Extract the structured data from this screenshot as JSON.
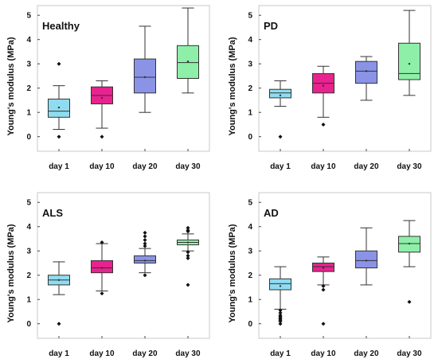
{
  "chart_data": [
    {
      "type": "box",
      "title": "Healthy",
      "ylabel": "Young's modulus (MPa)",
      "ylim": [
        -0.6,
        5.4
      ],
      "yticks": [
        0,
        1,
        2,
        3,
        4,
        5
      ],
      "categories": [
        "day 1",
        "day 10",
        "day 20",
        "day 30"
      ],
      "colors": [
        "#8fdcf0",
        "#e8238f",
        "#8a93e6",
        "#8ef0a8"
      ],
      "boxes": [
        {
          "min": 0.3,
          "q1": 0.8,
          "median": 1.05,
          "q3": 1.55,
          "max": 2.1,
          "mean": 1.2,
          "outliers": [
            3.0,
            0.0
          ]
        },
        {
          "min": 0.35,
          "q1": 1.35,
          "median": 1.7,
          "q3": 2.05,
          "max": 2.3,
          "mean": 1.6,
          "outliers": [
            0.0
          ]
        },
        {
          "min": 1.0,
          "q1": 1.8,
          "median": 2.45,
          "q3": 3.2,
          "max": 4.55,
          "mean": 2.45,
          "outliers": []
        },
        {
          "min": 1.8,
          "q1": 2.4,
          "median": 3.05,
          "q3": 3.75,
          "max": 5.3,
          "mean": 3.1,
          "outliers": []
        }
      ]
    },
    {
      "type": "box",
      "title": "PD",
      "ylabel": "Young's modulus (MPa)",
      "ylim": [
        -0.6,
        5.4
      ],
      "yticks": [
        0,
        1,
        2,
        3,
        4,
        5
      ],
      "categories": [
        "day 1",
        "day 10",
        "day 20",
        "day 30"
      ],
      "colors": [
        "#8fdcf0",
        "#e8238f",
        "#8a93e6",
        "#8ef0a8"
      ],
      "boxes": [
        {
          "min": 1.25,
          "q1": 1.6,
          "median": 1.8,
          "q3": 1.95,
          "max": 2.3,
          "mean": 1.7,
          "outliers": [
            0.0
          ]
        },
        {
          "min": 0.8,
          "q1": 1.8,
          "median": 2.2,
          "q3": 2.6,
          "max": 2.9,
          "mean": 2.1,
          "outliers": [
            0.5
          ]
        },
        {
          "min": 1.5,
          "q1": 2.2,
          "median": 2.7,
          "q3": 3.1,
          "max": 3.3,
          "mean": 2.7,
          "outliers": []
        },
        {
          "min": 1.7,
          "q1": 2.35,
          "median": 2.6,
          "q3": 3.85,
          "max": 5.2,
          "mean": 3.0,
          "outliers": []
        }
      ]
    },
    {
      "type": "box",
      "title": "ALS",
      "ylabel": "Young's modulus (MPa)",
      "ylim": [
        -0.6,
        5.4
      ],
      "yticks": [
        0,
        1,
        2,
        3,
        4,
        5
      ],
      "categories": [
        "day 1",
        "day 10",
        "day 20",
        "day 30"
      ],
      "colors": [
        "#8fdcf0",
        "#e8238f",
        "#8a93e6",
        "#8ef0a8"
      ],
      "boxes": [
        {
          "min": 1.2,
          "q1": 1.6,
          "median": 1.8,
          "q3": 2.0,
          "max": 2.55,
          "mean": 1.8,
          "outliers": [
            0.0
          ]
        },
        {
          "min": 1.35,
          "q1": 2.1,
          "median": 2.3,
          "q3": 2.6,
          "max": 3.3,
          "mean": 2.3,
          "outliers": [
            3.35,
            1.25
          ]
        },
        {
          "min": 2.1,
          "q1": 2.5,
          "median": 2.6,
          "q3": 2.8,
          "max": 3.1,
          "mean": 2.6,
          "outliers": [
            3.75,
            3.6,
            3.45,
            3.3,
            3.2,
            2.0
          ]
        },
        {
          "min": 3.0,
          "q1": 3.25,
          "median": 3.35,
          "q3": 3.45,
          "max": 3.7,
          "mean": 3.35,
          "outliers": [
            3.95,
            3.85,
            3.8,
            2.95,
            2.8,
            2.7,
            1.6
          ]
        }
      ]
    },
    {
      "type": "box",
      "title": "AD",
      "ylabel": "Young's modulus (MPa)",
      "ylim": [
        -0.6,
        5.4
      ],
      "yticks": [
        0,
        1,
        2,
        3,
        4,
        5
      ],
      "categories": [
        "day 1",
        "day 10",
        "day 20",
        "day 30"
      ],
      "colors": [
        "#8fdcf0",
        "#e8238f",
        "#8a93e6",
        "#8ef0a8"
      ],
      "boxes": [
        {
          "min": 0.6,
          "q1": 1.4,
          "median": 1.65,
          "q3": 1.85,
          "max": 2.35,
          "mean": 1.55,
          "outliers": [
            0.55,
            0.45,
            0.35,
            0.3,
            0.25,
            0.2,
            0.15,
            0.1,
            0.0
          ]
        },
        {
          "min": 1.6,
          "q1": 2.15,
          "median": 2.35,
          "q3": 2.5,
          "max": 2.75,
          "mean": 2.3,
          "outliers": [
            1.55,
            1.4,
            0.0
          ]
        },
        {
          "min": 1.6,
          "q1": 2.3,
          "median": 2.6,
          "q3": 3.0,
          "max": 3.95,
          "mean": 2.6,
          "outliers": []
        },
        {
          "min": 2.35,
          "q1": 2.95,
          "median": 3.3,
          "q3": 3.6,
          "max": 4.25,
          "mean": 3.3,
          "outliers": [
            0.9
          ]
        }
      ]
    }
  ]
}
